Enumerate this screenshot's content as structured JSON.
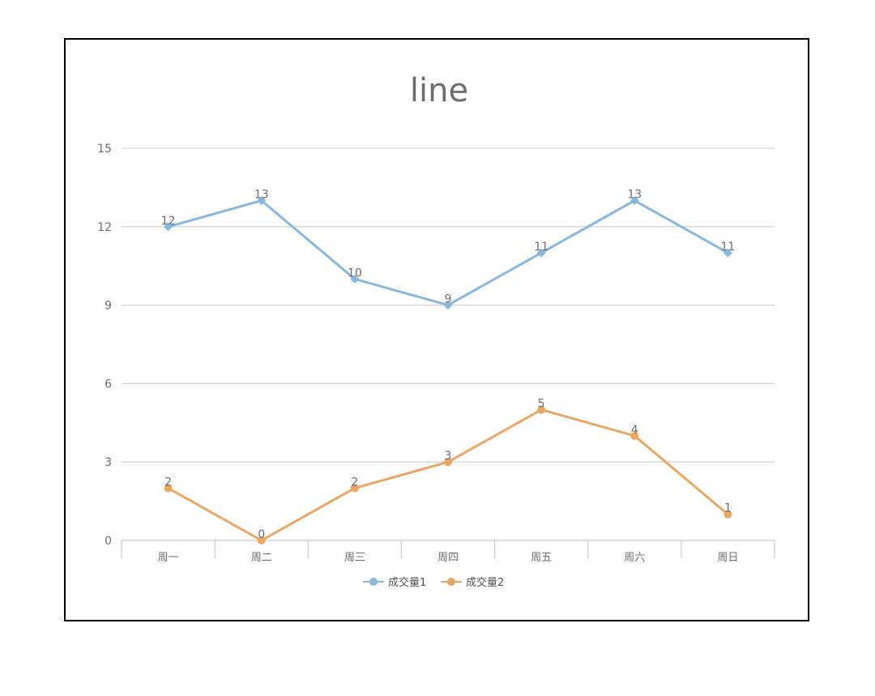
{
  "chart_data": {
    "type": "line",
    "title": "line",
    "xlabel": "",
    "ylabel": "",
    "categories": [
      "周一",
      "周二",
      "周三",
      "周四",
      "周五",
      "周六",
      "周日"
    ],
    "ylim": [
      0,
      15
    ],
    "yticks": [
      "0",
      "3",
      "6",
      "9",
      "12",
      "15"
    ],
    "grid": true,
    "legend_position": "bottom",
    "series": [
      {
        "name": "成交量1",
        "values": [
          12,
          13,
          10,
          9,
          11,
          13,
          11
        ],
        "color": "#88b8de",
        "marker": "diamond"
      },
      {
        "name": "成交量2",
        "values": [
          2,
          0,
          2,
          3,
          5,
          4,
          1
        ],
        "color": "#eba762",
        "marker": "circle"
      }
    ]
  }
}
